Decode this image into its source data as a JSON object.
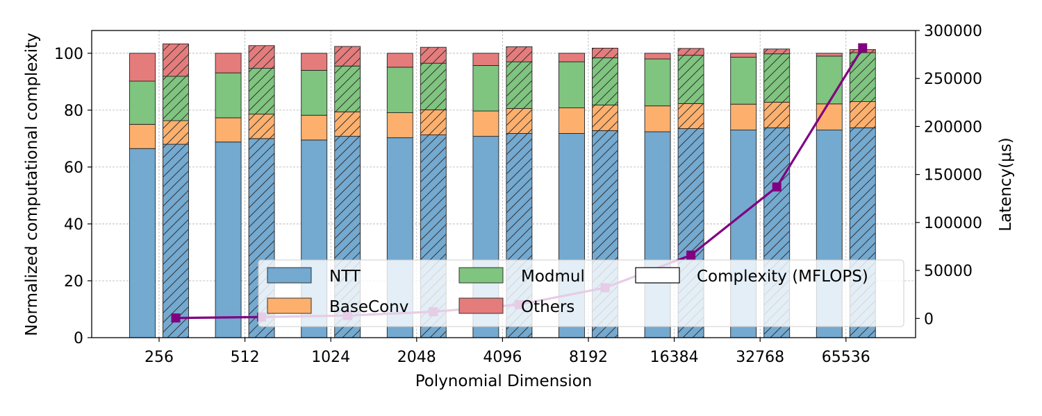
{
  "chart_data": {
    "type": "bar",
    "stacked": true,
    "grid": true,
    "legend_placement": "bottom-right",
    "xlabel": "Polynomial Dimension",
    "ylabel": "Normalized computational complexity",
    "y2label": "Latency(μs)",
    "ylim": [
      0,
      108
    ],
    "y2lim": [
      -20000,
      300000
    ],
    "yticks": [
      0,
      20,
      40,
      60,
      80,
      100
    ],
    "y2ticks": [
      0,
      50000,
      100000,
      150000,
      200000,
      250000,
      300000
    ],
    "categories": [
      "256",
      "512",
      "1024",
      "2048",
      "4096",
      "8192",
      "16384",
      "32768",
      "65536"
    ],
    "components": [
      {
        "name": "NTT",
        "color": "#74a9d0"
      },
      {
        "name": "BaseConv",
        "color": "#fdb06d"
      },
      {
        "name": "Modmul",
        "color": "#7fc47f"
      },
      {
        "name": "Others",
        "color": "#e57c7c"
      }
    ],
    "bar_groups": [
      {
        "hatched": false,
        "NTT": [
          66.5,
          68.8,
          69.5,
          70.3,
          70.8,
          71.8,
          72.4,
          73.0,
          73.0
        ],
        "BaseConv": [
          8.5,
          8.5,
          8.7,
          8.8,
          8.9,
          9.0,
          9.1,
          9.1,
          9.2
        ],
        "Modmul": [
          15.2,
          15.8,
          15.8,
          16.0,
          16.0,
          16.2,
          16.5,
          16.5,
          16.8
        ],
        "Others": [
          9.8,
          6.9,
          6.0,
          4.9,
          4.3,
          3.0,
          2.0,
          1.4,
          1.0
        ]
      },
      {
        "hatched": true,
        "NTT": [
          68.0,
          70.0,
          70.8,
          71.3,
          71.8,
          72.8,
          73.5,
          73.8,
          73.8
        ],
        "BaseConv": [
          8.3,
          8.6,
          8.6,
          8.8,
          8.8,
          9.0,
          8.8,
          9.0,
          9.2
        ],
        "Modmul": [
          15.6,
          16.1,
          16.1,
          16.4,
          16.4,
          16.6,
          17.0,
          17.0,
          17.2
        ],
        "Others": [
          11.4,
          8.0,
          6.9,
          5.6,
          5.3,
          3.4,
          2.4,
          1.7,
          1.1
        ]
      }
    ],
    "line_series": {
      "name": "Complexity (MFLOPS)",
      "axis": "right",
      "color": "#800080",
      "values": [
        500,
        1500,
        3000,
        7000,
        14500,
        32000,
        66000,
        137000,
        282000
      ]
    }
  },
  "legend": {
    "items": [
      "NTT",
      "Modmul",
      "Complexity (MFLOPS)",
      "BaseConv",
      "Others"
    ]
  }
}
